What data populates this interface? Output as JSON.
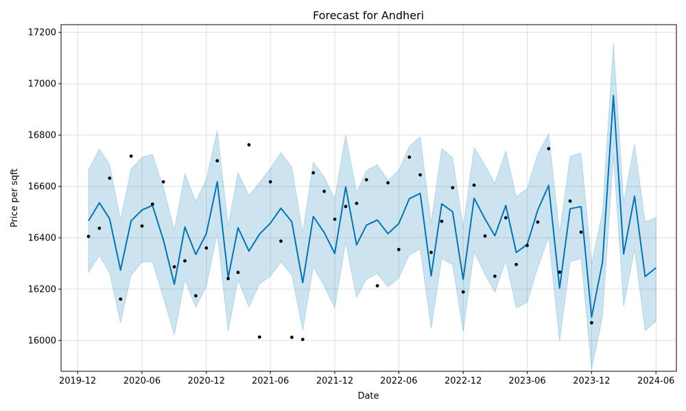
{
  "chart_data": {
    "type": "line",
    "title": "Forecast for Andheri",
    "xlabel": "Date",
    "ylabel": "Price per sqft",
    "x_ticks": [
      "2019-12",
      "2020-06",
      "2020-12",
      "2021-06",
      "2021-12",
      "2022-06",
      "2022-12",
      "2023-06",
      "2023-12",
      "2024-06"
    ],
    "y_ticks": [
      16000,
      16200,
      16400,
      16600,
      16800,
      17000,
      17200
    ],
    "xlim": [
      "2019-10-15",
      "2024-07-29"
    ],
    "ylim": [
      15880,
      17230
    ],
    "grid": true,
    "colors": {
      "forecast": "#0072B2",
      "band": "#0072B2",
      "band_opacity": 0.2,
      "observed": "#000000"
    },
    "series": [
      {
        "role": "observed",
        "points": [
          [
            "2020-01-01",
            16405
          ],
          [
            "2020-02-01",
            16437
          ],
          [
            "2020-03-01",
            16632
          ],
          [
            "2020-04-01",
            16161
          ],
          [
            "2020-05-01",
            16718
          ],
          [
            "2020-06-01",
            16446
          ],
          [
            "2020-07-01",
            16531
          ],
          [
            "2020-08-01",
            16618
          ],
          [
            "2020-09-01",
            16287
          ],
          [
            "2020-10-01",
            16310
          ],
          [
            "2020-11-01",
            16174
          ],
          [
            "2020-12-01",
            16360
          ],
          [
            "2021-01-01",
            16700
          ],
          [
            "2021-02-01",
            16241
          ],
          [
            "2021-03-01",
            16265
          ],
          [
            "2021-04-01",
            16762
          ],
          [
            "2021-05-01",
            16013
          ],
          [
            "2021-06-01",
            16618
          ],
          [
            "2021-07-01",
            16387
          ],
          [
            "2021-08-01",
            16012
          ],
          [
            "2021-09-01",
            16004
          ],
          [
            "2021-10-01",
            16653
          ],
          [
            "2021-11-01",
            16581
          ],
          [
            "2021-12-01",
            16472
          ],
          [
            "2022-01-01",
            16522
          ],
          [
            "2022-02-01",
            16534
          ],
          [
            "2022-03-01",
            16626
          ],
          [
            "2022-04-01",
            16213
          ],
          [
            "2022-05-01",
            16614
          ],
          [
            "2022-06-01",
            16354
          ],
          [
            "2022-07-01",
            16714
          ],
          [
            "2022-08-01",
            16645
          ],
          [
            "2022-09-01",
            16343
          ],
          [
            "2022-10-01",
            16464
          ],
          [
            "2022-11-01",
            16595
          ],
          [
            "2022-12-01",
            16189
          ],
          [
            "2023-01-01",
            16605
          ],
          [
            "2023-02-01",
            16407
          ],
          [
            "2023-03-01",
            16250
          ],
          [
            "2023-04-01",
            16478
          ],
          [
            "2023-05-01",
            16296
          ],
          [
            "2023-06-01",
            16370
          ],
          [
            "2023-07-01",
            16461
          ],
          [
            "2023-08-01",
            16747
          ],
          [
            "2023-09-01",
            16266
          ],
          [
            "2023-10-01",
            16543
          ],
          [
            "2023-11-01",
            16422
          ],
          [
            "2023-12-01",
            16069
          ]
        ]
      },
      {
        "role": "forecast",
        "x": [
          "2020-01-01",
          "2020-02-01",
          "2020-03-01",
          "2020-04-01",
          "2020-05-01",
          "2020-06-01",
          "2020-07-01",
          "2020-08-01",
          "2020-09-01",
          "2020-10-01",
          "2020-11-01",
          "2020-12-01",
          "2021-01-01",
          "2021-02-01",
          "2021-03-01",
          "2021-04-01",
          "2021-05-01",
          "2021-06-01",
          "2021-07-01",
          "2021-08-01",
          "2021-09-01",
          "2021-10-01",
          "2021-11-01",
          "2021-12-01",
          "2022-01-01",
          "2022-02-01",
          "2022-03-01",
          "2022-04-01",
          "2022-05-01",
          "2022-06-01",
          "2022-07-01",
          "2022-08-01",
          "2022-09-01",
          "2022-10-01",
          "2022-11-01",
          "2022-12-01",
          "2023-01-01",
          "2023-02-01",
          "2023-03-01",
          "2023-04-01",
          "2023-05-01",
          "2023-06-01",
          "2023-07-01",
          "2023-08-01",
          "2023-09-01",
          "2023-10-01",
          "2023-11-01",
          "2023-12-01",
          "2024-01-01",
          "2024-02-01",
          "2024-03-01",
          "2024-04-01",
          "2024-05-01",
          "2024-06-01"
        ],
        "yhat": [
          16466,
          16536,
          16474,
          16274,
          16466,
          16508,
          16526,
          16391,
          16219,
          16442,
          16335,
          16416,
          16618,
          16244,
          16439,
          16348,
          16414,
          16457,
          16515,
          16462,
          16225,
          16483,
          16420,
          16339,
          16598,
          16372,
          16449,
          16469,
          16416,
          16455,
          16552,
          16573,
          16251,
          16532,
          16501,
          16238,
          16554,
          16473,
          16408,
          16526,
          16343,
          16374,
          16508,
          16604,
          16204,
          16513,
          16521,
          16091,
          16305,
          16954,
          16337,
          16562,
          16249,
          16283
        ],
        "yhat_lower": [
          16266,
          16331,
          16262,
          16068,
          16254,
          16305,
          16307,
          16166,
          16021,
          16237,
          16129,
          16210,
          16418,
          16034,
          16236,
          16130,
          16220,
          16250,
          16306,
          16254,
          16040,
          16286,
          16212,
          16127,
          16383,
          16167,
          16239,
          16260,
          16209,
          16243,
          16333,
          16356,
          16045,
          16319,
          16295,
          16034,
          16347,
          16257,
          16187,
          16310,
          16126,
          16149,
          16284,
          16402,
          15996,
          16306,
          16320,
          15888,
          16091,
          16720,
          16133,
          16354,
          16038,
          16075
        ],
        "yhat_upper": [
          16665,
          16746,
          16685,
          16470,
          16668,
          16713,
          16725,
          16596,
          16430,
          16650,
          16542,
          16628,
          16818,
          16448,
          16654,
          16564,
          16615,
          16670,
          16732,
          16674,
          16420,
          16695,
          16636,
          16553,
          16800,
          16578,
          16662,
          16685,
          16624,
          16662,
          16756,
          16794,
          16458,
          16748,
          16712,
          16442,
          16752,
          16682,
          16612,
          16740,
          16560,
          16592,
          16726,
          16804,
          16418,
          16717,
          16730,
          16300,
          16501,
          17160,
          16540,
          16765,
          16462,
          16478
        ]
      }
    ]
  }
}
